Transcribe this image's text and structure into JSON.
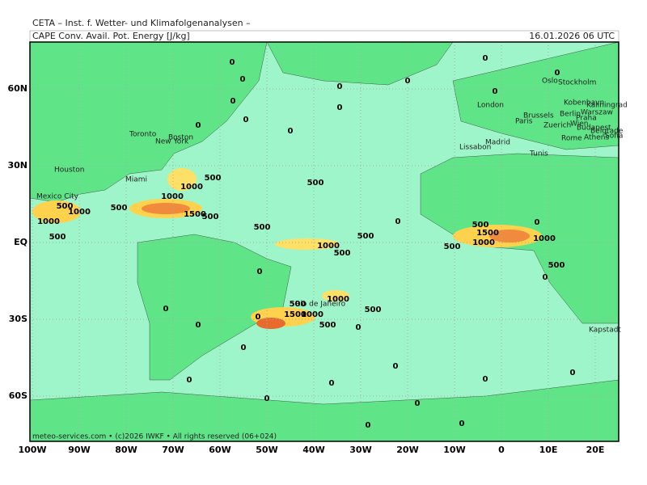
{
  "header": {
    "institute": "CETA – Inst. f. Wetter- und Klimafolgenanalysen –",
    "product": "CAPE Conv. Avail. Pot. Energy [J/kg]",
    "valid_time": "16.01.2026 06 UTC"
  },
  "footer": "meteo-services.com • (c)2026 IWKF • All rights reserved (06+024)",
  "axes": {
    "x_labels": [
      "100W",
      "90W",
      "80W",
      "70W",
      "60W",
      "50W",
      "40W",
      "30W",
      "20W",
      "10W",
      "0",
      "10E",
      "20E"
    ],
    "y_labels": [
      "60N",
      "30N",
      "EQ",
      "30S",
      "60S"
    ]
  },
  "cities": [
    "Oslo",
    "Stockholm",
    "London",
    "Kobenhavn",
    "Kaliningrad",
    "Warszaw",
    "Berlin",
    "Praha",
    "Brussels",
    "Paris",
    "Zuerich",
    "Wien",
    "Budapest",
    "Belgrade",
    "Rome",
    "Athens",
    "Sofia",
    "Madrid",
    "Lissabon",
    "Tunis",
    "Toronto",
    "Boston",
    "New York",
    "Houston",
    "Miami",
    "Mexico City",
    "Rio de Janeiro",
    "Kapstadt"
  ],
  "contour_labels": [
    "0",
    "0",
    "0",
    "0",
    "0",
    "0",
    "0",
    "0",
    "0",
    "0",
    "0",
    "0",
    "0",
    "0",
    "0",
    "0",
    "0",
    "0",
    "0",
    "0",
    "0",
    "0",
    "0",
    "0",
    "0",
    "0",
    "0",
    "0",
    "0",
    "0",
    "500",
    "500",
    "500",
    "500",
    "500",
    "500",
    "500",
    "500",
    "500",
    "500",
    "500",
    "500",
    "500",
    "500",
    "500",
    "1000",
    "1000",
    "1000",
    "1000",
    "1000",
    "1000",
    "1000",
    "1000",
    "1000",
    "1500",
    "1500",
    "1500"
  ]
}
